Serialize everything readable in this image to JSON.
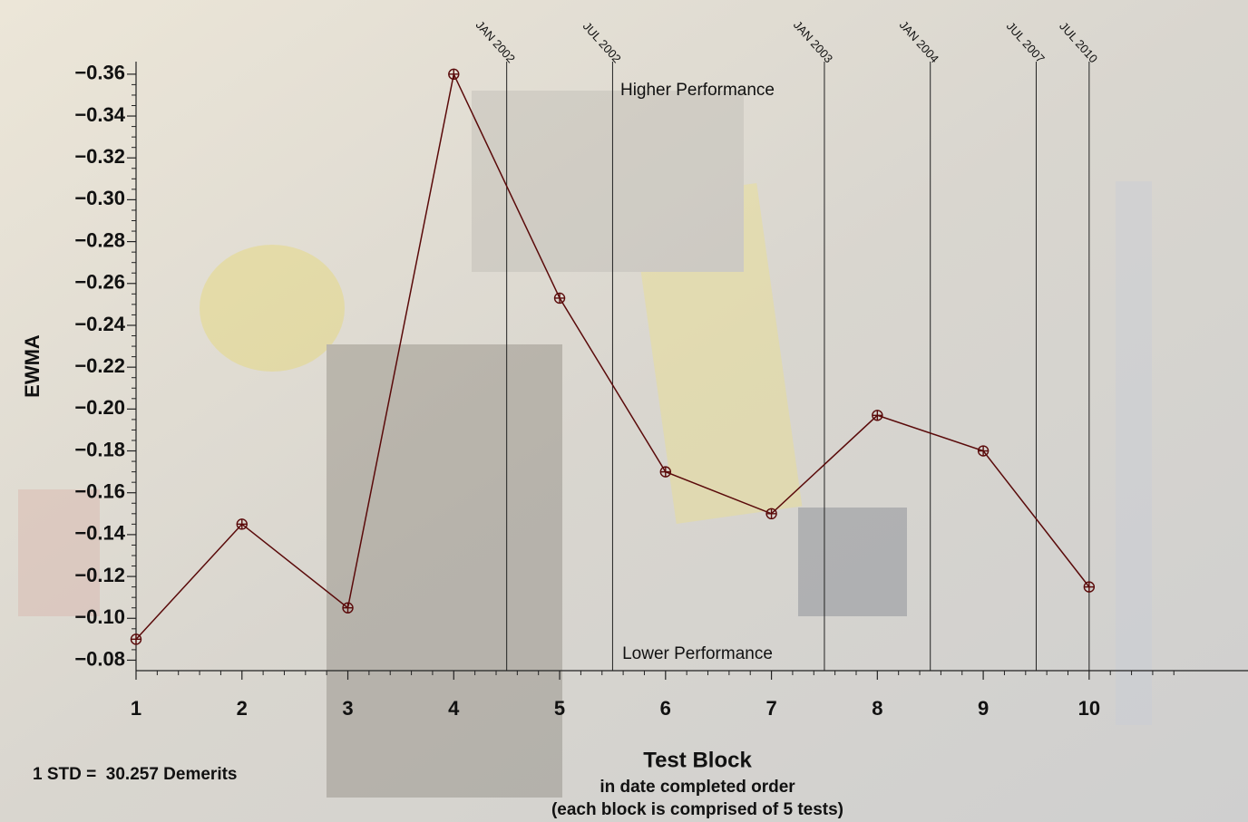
{
  "chart_data": {
    "type": "line",
    "x_label": "Test Block",
    "x_sublabels": [
      "in date completed order",
      "(each block is comprised of 5 tests)"
    ],
    "y_label": "EWMA",
    "footnote": "1 STD =  30.257 Demerits",
    "annotations": [
      "Higher Performance",
      "Lower Performance"
    ],
    "x": [
      1,
      2,
      3,
      4,
      5,
      6,
      7,
      8,
      9,
      10
    ],
    "series": [
      {
        "color": "#5a0a0a",
        "values": [
          -0.09,
          -0.145,
          -0.105,
          -0.36,
          -0.253,
          -0.17,
          -0.15,
          -0.197,
          -0.18,
          -0.115
        ]
      }
    ],
    "xlim": [
      1,
      11.5
    ],
    "xticks": [
      1,
      2,
      3,
      4,
      5,
      6,
      7,
      8,
      9,
      10
    ],
    "ylim": [
      -0.075,
      -0.366
    ],
    "yticks": [
      {
        "value": -0.36,
        "label": "−0.36"
      },
      {
        "value": -0.34,
        "label": "−0.34"
      },
      {
        "value": -0.32,
        "label": "−0.32"
      },
      {
        "value": -0.3,
        "label": "−0.30"
      },
      {
        "value": -0.28,
        "label": "−0.28"
      },
      {
        "value": -0.26,
        "label": "−0.26"
      },
      {
        "value": -0.24,
        "label": "−0.24"
      },
      {
        "value": -0.22,
        "label": "−0.22"
      },
      {
        "value": -0.2,
        "label": "−0.20"
      },
      {
        "value": -0.18,
        "label": "−0.18"
      },
      {
        "value": -0.16,
        "label": "−0.16"
      },
      {
        "value": -0.14,
        "label": "−0.14"
      },
      {
        "value": -0.12,
        "label": "−0.12"
      },
      {
        "value": -0.1,
        "label": "−0.10"
      },
      {
        "value": -0.08,
        "label": "−0.08"
      }
    ],
    "events": [
      {
        "x": 4.5,
        "label": "JAN 2002"
      },
      {
        "x": 5.5,
        "label": "JUL 2002"
      },
      {
        "x": 7.5,
        "label": "JAN 2003"
      },
      {
        "x": 8.5,
        "label": "JAN 2004"
      },
      {
        "x": 9.5,
        "label": "JUL 2007"
      },
      {
        "x": 10,
        "label": "JUL 2010"
      }
    ]
  }
}
